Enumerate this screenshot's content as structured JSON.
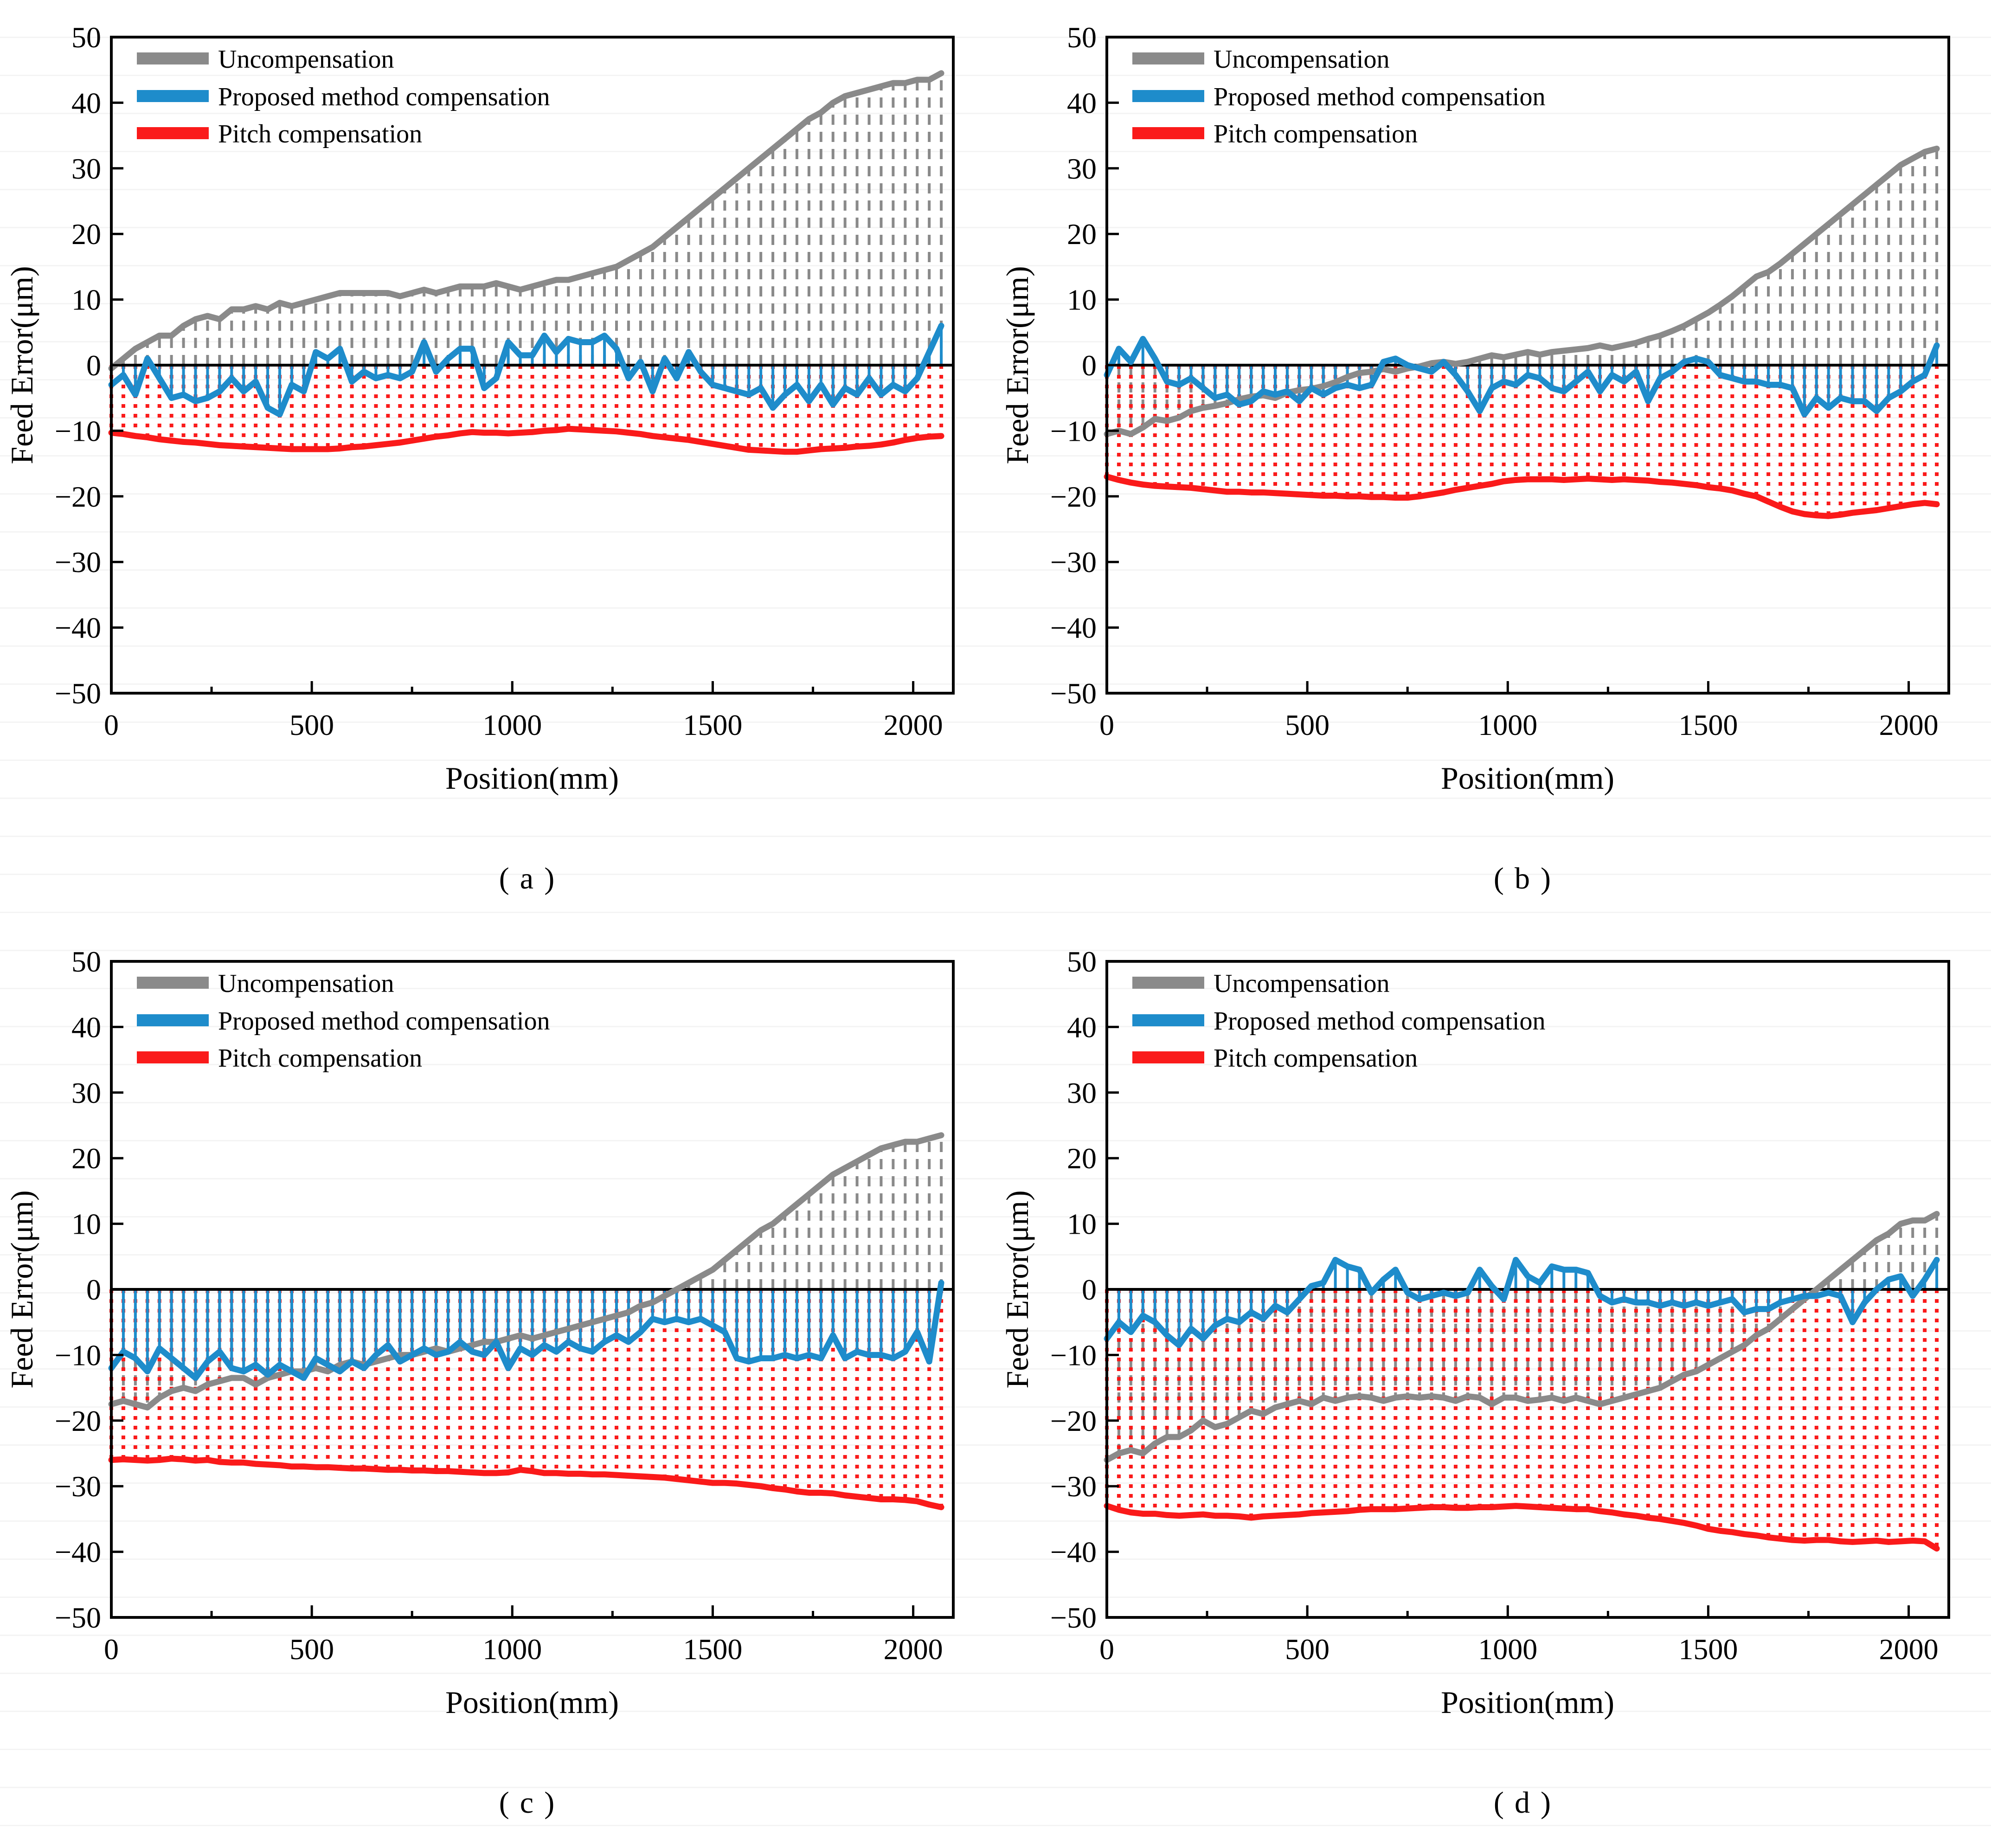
{
  "figure": {
    "y_axis_label": "Feed Error(μm)",
    "x_axis_label": "Position(mm)",
    "legend": [
      "Uncompensation",
      "Proposed method compensation",
      "Pitch compensation"
    ],
    "legend_position": "top-left-inside",
    "colors": {
      "uncompensation": "#8a8a8a",
      "proposed_method": "#1e8ccb",
      "pitch": "#fa1a1a",
      "axis": "#000000"
    },
    "y_ticks": [
      50,
      40,
      30,
      20,
      10,
      0,
      -10,
      -20,
      -30,
      -40,
      -50
    ],
    "x_ticks": [
      0,
      500,
      1000,
      1500,
      2000
    ],
    "x_minor_ticks": [
      250,
      750,
      1250,
      1750
    ],
    "grid": false,
    "stem_styles": {
      "uncompensation": "gray dashed vertical drop-lines to zero",
      "proposed_method": "blue solid vertical drop-lines to zero",
      "pitch": "red dotted vertical drop-lines to zero"
    }
  },
  "positions_mm": [
    0,
    30,
    60,
    90,
    120,
    150,
    180,
    210,
    240,
    270,
    300,
    330,
    360,
    390,
    420,
    450,
    480,
    510,
    540,
    570,
    600,
    630,
    660,
    690,
    720,
    750,
    780,
    810,
    840,
    870,
    900,
    930,
    960,
    990,
    1020,
    1050,
    1080,
    1110,
    1140,
    1170,
    1200,
    1230,
    1260,
    1290,
    1320,
    1350,
    1380,
    1410,
    1440,
    1470,
    1500,
    1530,
    1560,
    1590,
    1620,
    1650,
    1680,
    1710,
    1740,
    1770,
    1800,
    1830,
    1860,
    1890,
    1920,
    1950,
    1980,
    2010,
    2040,
    2070
  ],
  "chart_data": [
    {
      "type": "line",
      "panel_label": "(a)",
      "xlabel": "Position(mm)",
      "ylabel": "Feed Error(μm)",
      "xlim": [
        0,
        2100
      ],
      "ylim": [
        -50,
        50
      ],
      "series": [
        {
          "name": "Uncompensation",
          "values": [
            -0.5,
            1,
            2.5,
            3.5,
            4.5,
            4.5,
            6,
            7,
            7.5,
            7,
            8.5,
            8.5,
            9,
            8.5,
            9.5,
            9,
            9.5,
            10,
            10.5,
            11,
            11,
            11,
            11,
            11,
            10.5,
            11,
            11.5,
            11,
            11.5,
            12,
            12,
            12,
            12.5,
            12,
            11.5,
            12,
            12.5,
            13,
            13,
            13.5,
            14,
            14.5,
            15,
            16,
            17,
            18,
            19.5,
            21,
            22.5,
            24,
            25.5,
            27,
            28.5,
            30,
            31.5,
            33,
            34.5,
            36,
            37.5,
            38.5,
            40,
            41,
            41.5,
            42,
            42.5,
            43,
            43,
            43.5,
            43.5,
            44.5
          ]
        },
        {
          "name": "Proposed method compensation",
          "values": [
            -3,
            -1.5,
            -4.5,
            1,
            -2,
            -5,
            -4.5,
            -5.5,
            -5,
            -4,
            -2,
            -4,
            -2.5,
            -6.5,
            -7.5,
            -3,
            -4,
            2,
            1,
            2.5,
            -2.5,
            -1,
            -2,
            -1.5,
            -2,
            -1,
            3.5,
            -1,
            1,
            2.5,
            2.5,
            -3.5,
            -2,
            3.5,
            1.5,
            1.5,
            4.5,
            2,
            4,
            3.5,
            3.5,
            4.5,
            2.5,
            -2,
            0.5,
            -4,
            1,
            -2,
            2,
            -1,
            -3,
            -3.5,
            -4,
            -4.5,
            -3.5,
            -6.5,
            -4.5,
            -3,
            -5.5,
            -3,
            -6,
            -3.5,
            -4.5,
            -2,
            -4.5,
            -3,
            -4,
            -2,
            2,
            6
          ]
        },
        {
          "name": "Pitch compensation",
          "values": [
            -10.3,
            -10.5,
            -10.8,
            -11,
            -11.3,
            -11.5,
            -11.7,
            -11.8,
            -12,
            -12.2,
            -12.3,
            -12.4,
            -12.5,
            -12.6,
            -12.7,
            -12.8,
            -12.8,
            -12.8,
            -12.8,
            -12.7,
            -12.5,
            -12.4,
            -12.2,
            -12,
            -11.8,
            -11.5,
            -11.2,
            -10.9,
            -10.7,
            -10.4,
            -10.2,
            -10.3,
            -10.3,
            -10.4,
            -10.3,
            -10.2,
            -10,
            -9.9,
            -9.7,
            -9.8,
            -9.9,
            -10,
            -10.1,
            -10.3,
            -10.5,
            -10.8,
            -11,
            -11.2,
            -11.4,
            -11.7,
            -12,
            -12.3,
            -12.6,
            -12.9,
            -13,
            -13.1,
            -13.2,
            -13.2,
            -13,
            -12.8,
            -12.7,
            -12.6,
            -12.4,
            -12.3,
            -12.1,
            -11.8,
            -11.4,
            -11.1,
            -10.9,
            -10.8
          ]
        }
      ]
    },
    {
      "type": "line",
      "panel_label": "(b)",
      "xlabel": "Position(mm)",
      "ylabel": "Feed Error(μm)",
      "xlim": [
        0,
        2100
      ],
      "ylim": [
        -50,
        50
      ],
      "series": [
        {
          "name": "Uncompensation",
          "values": [
            -10.5,
            -10,
            -10.5,
            -9.5,
            -8.2,
            -8.5,
            -8,
            -7,
            -6.5,
            -6.2,
            -5.8,
            -5.2,
            -4.8,
            -4.6,
            -5,
            -4.2,
            -3.8,
            -3.6,
            -3.2,
            -2.6,
            -1.8,
            -1.2,
            -1,
            -0.6,
            -1,
            -0.5,
            -0.2,
            0.3,
            0.5,
            0.2,
            0.5,
            1,
            1.5,
            1.2,
            1.6,
            2,
            1.6,
            2,
            2.2,
            2.4,
            2.6,
            3,
            2.6,
            3,
            3.4,
            4,
            4.5,
            5.2,
            6,
            7,
            8,
            9.2,
            10.5,
            12,
            13.5,
            14.2,
            15.5,
            17,
            18.5,
            20,
            21.5,
            23,
            24.5,
            26,
            27.5,
            29,
            30.5,
            31.5,
            32.5,
            33
          ]
        },
        {
          "name": "Proposed method compensation",
          "values": [
            -1.5,
            2.5,
            0.5,
            4,
            1,
            -2.5,
            -3,
            -2,
            -3.5,
            -5,
            -4.5,
            -6,
            -5.5,
            -4,
            -4.5,
            -4,
            -5.5,
            -3.5,
            -4.5,
            -3.5,
            -3,
            -3.5,
            -3,
            0.5,
            1,
            0,
            -0.5,
            -1,
            0.5,
            -1.5,
            -4,
            -7,
            -3.5,
            -2.5,
            -3,
            -1.5,
            -2,
            -3.5,
            -4,
            -2.5,
            -1,
            -4,
            -1.5,
            -2.5,
            -1,
            -5.5,
            -2,
            -1,
            0.5,
            1,
            0.5,
            -1.5,
            -2,
            -2.5,
            -2.5,
            -3,
            -3,
            -3.5,
            -7.5,
            -5,
            -6.5,
            -5,
            -5.5,
            -5.5,
            -7,
            -5,
            -4,
            -2.5,
            -1.5,
            3
          ]
        },
        {
          "name": "Pitch compensation",
          "values": [
            -17,
            -17.5,
            -17.9,
            -18.2,
            -18.4,
            -18.5,
            -18.6,
            -18.7,
            -18.9,
            -19.1,
            -19.3,
            -19.3,
            -19.4,
            -19.4,
            -19.5,
            -19.6,
            -19.7,
            -19.8,
            -19.9,
            -19.9,
            -20,
            -20,
            -20.1,
            -20.1,
            -20.2,
            -20.2,
            -20,
            -19.7,
            -19.4,
            -19,
            -18.7,
            -18.4,
            -18.1,
            -17.7,
            -17.5,
            -17.4,
            -17.4,
            -17.4,
            -17.5,
            -17.4,
            -17.3,
            -17.4,
            -17.5,
            -17.4,
            -17.5,
            -17.6,
            -17.8,
            -17.9,
            -18.1,
            -18.3,
            -18.6,
            -18.8,
            -19.1,
            -19.6,
            -20,
            -20.8,
            -21.6,
            -22.3,
            -22.7,
            -22.9,
            -23,
            -22.8,
            -22.5,
            -22.3,
            -22.1,
            -21.8,
            -21.5,
            -21.2,
            -21,
            -21.2
          ]
        }
      ]
    },
    {
      "type": "line",
      "panel_label": "(c)",
      "xlabel": "Position(mm)",
      "ylabel": "Feed Error(μm)",
      "xlim": [
        0,
        2100
      ],
      "ylim": [
        -50,
        50
      ],
      "series": [
        {
          "name": "Uncompensation",
          "values": [
            -17.5,
            -17,
            -17.5,
            -18,
            -16.5,
            -15.5,
            -15,
            -15.5,
            -14.5,
            -14,
            -13.5,
            -13.5,
            -14.5,
            -13.5,
            -13,
            -12.5,
            -12.5,
            -12,
            -12.5,
            -11.5,
            -11,
            -11.5,
            -11,
            -10.5,
            -10,
            -10,
            -9.5,
            -9,
            -9.5,
            -9,
            -8.5,
            -8,
            -8,
            -7.5,
            -7,
            -7.5,
            -7,
            -6.5,
            -6,
            -5.5,
            -5,
            -4.5,
            -4,
            -3.5,
            -2.5,
            -2,
            -1,
            0,
            1,
            2,
            3,
            4.5,
            6,
            7.5,
            9,
            10,
            11.5,
            13,
            14.5,
            16,
            17.5,
            18.5,
            19.5,
            20.5,
            21.5,
            22,
            22.5,
            22.5,
            23,
            23.5
          ]
        },
        {
          "name": "Proposed method compensation",
          "values": [
            -12,
            -9.5,
            -10.5,
            -12.5,
            -9,
            -10.5,
            -12,
            -13.5,
            -11,
            -9.5,
            -12,
            -12.5,
            -11.5,
            -13,
            -11.5,
            -12.5,
            -13.5,
            -10.5,
            -11.5,
            -12.5,
            -11,
            -12,
            -10,
            -8.5,
            -11,
            -10,
            -9,
            -10,
            -9.5,
            -8,
            -9.5,
            -10,
            -8,
            -12,
            -9,
            -10,
            -8.5,
            -9.5,
            -8,
            -9,
            -9.5,
            -8,
            -7,
            -8,
            -6.5,
            -4.5,
            -5,
            -4.5,
            -5,
            -4.5,
            -5.5,
            -6.5,
            -10.5,
            -11,
            -10.5,
            -10.5,
            -10,
            -10.5,
            -10,
            -10.5,
            -7,
            -10.5,
            -9.5,
            -10,
            -10,
            -10.5,
            -9.5,
            -6.5,
            -11,
            1
          ]
        },
        {
          "name": "Pitch compensation",
          "values": [
            -26,
            -25.9,
            -26,
            -26.1,
            -26,
            -25.8,
            -25.9,
            -26.1,
            -26,
            -26.3,
            -26.4,
            -26.4,
            -26.6,
            -26.7,
            -26.8,
            -27,
            -27,
            -27.1,
            -27.1,
            -27.2,
            -27.3,
            -27.3,
            -27.4,
            -27.5,
            -27.5,
            -27.6,
            -27.6,
            -27.7,
            -27.7,
            -27.8,
            -27.9,
            -28,
            -28,
            -27.9,
            -27.5,
            -27.7,
            -28,
            -28,
            -28.1,
            -28.1,
            -28.2,
            -28.2,
            -28.3,
            -28.4,
            -28.5,
            -28.6,
            -28.7,
            -28.9,
            -29.1,
            -29.3,
            -29.5,
            -29.5,
            -29.6,
            -29.8,
            -30,
            -30.3,
            -30.5,
            -30.8,
            -31,
            -31,
            -31.1,
            -31.4,
            -31.6,
            -31.8,
            -32,
            -32,
            -32.1,
            -32.3,
            -32.8,
            -33.2
          ]
        }
      ]
    },
    {
      "type": "line",
      "panel_label": "(d)",
      "xlabel": "Position(mm)",
      "ylabel": "Feed Error(μm)",
      "xlim": [
        0,
        2100
      ],
      "ylim": [
        -50,
        50
      ],
      "series": [
        {
          "name": "Uncompensation",
          "values": [
            -26,
            -25,
            -24.5,
            -25,
            -23.5,
            -22.5,
            -22.5,
            -21.5,
            -20,
            -21,
            -20.5,
            -19.5,
            -18.5,
            -19,
            -18,
            -17.5,
            -17,
            -17.5,
            -16.5,
            -17,
            -16.5,
            -16.3,
            -16.5,
            -17,
            -16.5,
            -16.3,
            -16.5,
            -16.3,
            -16.5,
            -17,
            -16.3,
            -16.5,
            -17.5,
            -16.5,
            -16.5,
            -17,
            -16.8,
            -16.5,
            -17,
            -16.5,
            -17,
            -17.5,
            -17,
            -16.5,
            -16,
            -15.5,
            -15,
            -14,
            -13,
            -12.5,
            -11.5,
            -10.5,
            -9.5,
            -8.5,
            -7,
            -6,
            -4.5,
            -3,
            -1.5,
            0,
            1.5,
            3,
            4.5,
            6,
            7.5,
            8.5,
            10,
            10.5,
            10.5,
            11.5
          ]
        },
        {
          "name": "Proposed method compensation",
          "values": [
            -7.5,
            -5,
            -6.5,
            -4,
            -5,
            -7,
            -8.5,
            -6,
            -7.5,
            -5.5,
            -4.5,
            -5,
            -3.5,
            -4.5,
            -2.5,
            -3.5,
            -1.5,
            0.5,
            1,
            4.5,
            3.5,
            3,
            -0.5,
            1.5,
            3,
            -0.5,
            -1.5,
            -1,
            -0.5,
            -1,
            -0.5,
            3,
            0.5,
            -1.5,
            4.5,
            2,
            1,
            3.5,
            3,
            3,
            2.5,
            -1,
            -2,
            -1.5,
            -2,
            -2,
            -2.5,
            -2,
            -2.5,
            -2,
            -2.5,
            -2,
            -1.5,
            -3.5,
            -3,
            -3,
            -2,
            -1.5,
            -1,
            -1,
            -0.5,
            -1,
            -5,
            -2,
            0,
            1.5,
            2,
            -1,
            1.5,
            4.5
          ]
        },
        {
          "name": "Pitch compensation",
          "values": [
            -33,
            -33.6,
            -34,
            -34.2,
            -34.2,
            -34.4,
            -34.5,
            -34.4,
            -34.3,
            -34.5,
            -34.5,
            -34.6,
            -34.8,
            -34.6,
            -34.5,
            -34.4,
            -34.3,
            -34.1,
            -34,
            -33.9,
            -33.8,
            -33.6,
            -33.5,
            -33.5,
            -33.5,
            -33.4,
            -33.3,
            -33.2,
            -33.2,
            -33.3,
            -33.3,
            -33.2,
            -33.2,
            -33.1,
            -33,
            -33.1,
            -33.2,
            -33.3,
            -33.4,
            -33.5,
            -33.5,
            -33.8,
            -34,
            -34.3,
            -34.5,
            -34.8,
            -35,
            -35.3,
            -35.6,
            -36,
            -36.5,
            -36.8,
            -37,
            -37.3,
            -37.5,
            -37.8,
            -38,
            -38.2,
            -38.3,
            -38.2,
            -38.2,
            -38.4,
            -38.5,
            -38.4,
            -38.3,
            -38.5,
            -38.4,
            -38.3,
            -38.4,
            -39.5
          ]
        }
      ]
    }
  ]
}
